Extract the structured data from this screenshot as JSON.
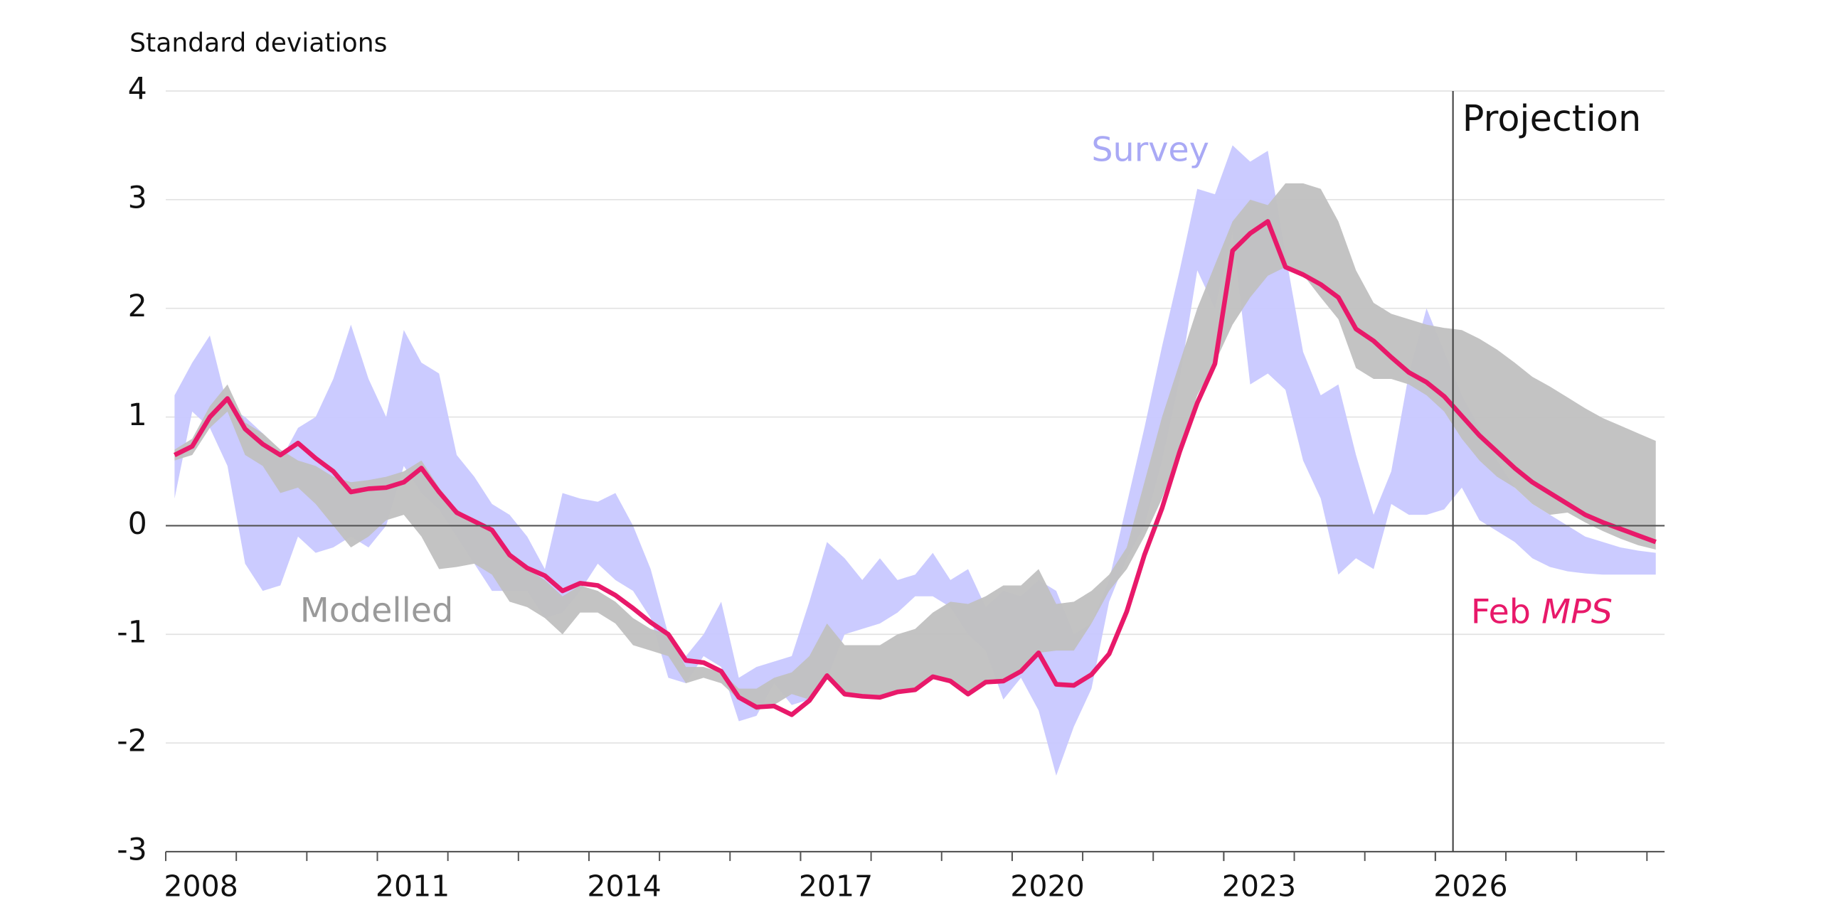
{
  "chart_data": {
    "type": "line",
    "y_label": "Standard deviations",
    "xlim": [
      2008,
      2029.25
    ],
    "xticks": [
      2008,
      2011,
      2014,
      2017,
      2020,
      2023,
      2026
    ],
    "ylim": [
      -3,
      4
    ],
    "yticks": [
      -3,
      -2,
      -1,
      0,
      1,
      2,
      3,
      4
    ],
    "grid": true,
    "projection_start": 2026.25,
    "projection_label": "Projection",
    "x": [
      2008.125,
      2008.375,
      2008.625,
      2008.875,
      2009.125,
      2009.375,
      2009.625,
      2009.875,
      2010.125,
      2010.375,
      2010.625,
      2010.875,
      2011.125,
      2011.375,
      2011.625,
      2011.875,
      2012.125,
      2012.375,
      2012.625,
      2012.875,
      2013.125,
      2013.375,
      2013.625,
      2013.875,
      2014.125,
      2014.375,
      2014.625,
      2014.875,
      2015.125,
      2015.375,
      2015.625,
      2015.875,
      2016.125,
      2016.375,
      2016.625,
      2016.875,
      2017.125,
      2017.375,
      2017.625,
      2017.875,
      2018.125,
      2018.375,
      2018.625,
      2018.875,
      2019.125,
      2019.375,
      2019.625,
      2019.875,
      2020.125,
      2020.375,
      2020.625,
      2020.875,
      2021.125,
      2021.375,
      2021.625,
      2021.875,
      2022.125,
      2022.375,
      2022.625,
      2022.875,
      2023.125,
      2023.375,
      2023.625,
      2023.875,
      2024.125,
      2024.375,
      2024.625,
      2024.875,
      2025.125,
      2025.375,
      2025.625,
      2025.875,
      2026.125,
      2026.375,
      2026.625,
      2026.875,
      2027.125,
      2027.375,
      2027.625,
      2027.875,
      2028.125,
      2028.375,
      2028.625,
      2028.875,
      2029.125
    ],
    "series": [
      {
        "name": "Survey",
        "color": "#c8c8ff",
        "kind": "band",
        "high": [
          1.2,
          1.5,
          1.75,
          1.1,
          1.0,
          0.85,
          0.6,
          0.9,
          1.0,
          1.35,
          1.85,
          1.35,
          1.0,
          1.8,
          1.5,
          1.4,
          0.65,
          0.45,
          0.2,
          0.1,
          -0.1,
          -0.4,
          0.3,
          0.25,
          0.22,
          0.3,
          0.0,
          -0.4,
          -1.0,
          -1.2,
          -1.0,
          -0.7,
          -1.4,
          -1.3,
          -1.25,
          -1.2,
          -0.7,
          -0.15,
          -0.3,
          -0.5,
          -0.3,
          -0.5,
          -0.45,
          -0.25,
          -0.5,
          -0.4,
          -0.75,
          -0.6,
          -0.65,
          -0.5,
          -0.6,
          -1.0,
          -0.9,
          -0.5,
          0.2,
          0.9,
          1.65,
          2.35,
          3.1,
          3.05,
          3.5,
          3.35,
          3.45,
          2.5,
          1.6,
          1.2,
          1.3,
          0.65,
          0.1,
          0.5,
          1.4,
          2.0,
          1.6,
          1.2,
          0.9,
          0.6,
          0.35,
          0.2,
          0.1,
          0.0,
          -0.1,
          -0.15,
          -0.2,
          -0.23,
          -0.25
        ],
        "low": [
          0.25,
          1.05,
          0.9,
          0.55,
          -0.35,
          -0.6,
          -0.55,
          -0.1,
          -0.25,
          -0.2,
          -0.1,
          -0.2,
          0.0,
          0.55,
          0.3,
          0.15,
          -0.1,
          -0.35,
          -0.6,
          -0.6,
          -0.6,
          -0.85,
          -0.8,
          -0.6,
          -0.35,
          -0.5,
          -0.6,
          -0.85,
          -1.4,
          -1.45,
          -1.2,
          -1.3,
          -1.8,
          -1.75,
          -1.45,
          -1.65,
          -1.6,
          -1.4,
          -1.0,
          -0.95,
          -0.9,
          -0.8,
          -0.65,
          -0.65,
          -0.75,
          -1.0,
          -1.15,
          -1.6,
          -1.4,
          -1.7,
          -2.3,
          -1.85,
          -1.5,
          -0.7,
          -0.3,
          0.0,
          0.6,
          1.35,
          2.35,
          2.0,
          2.7,
          1.3,
          1.4,
          1.25,
          0.6,
          0.25,
          -0.45,
          -0.3,
          -0.4,
          0.2,
          0.1,
          0.1,
          0.15,
          0.35,
          0.05,
          -0.05,
          -0.15,
          -0.3,
          -0.38,
          -0.42,
          -0.44,
          -0.45,
          -0.45,
          -0.45,
          -0.45
        ]
      },
      {
        "name": "Modelled",
        "color": "#c0c0c0",
        "kind": "band",
        "high": [
          0.7,
          0.8,
          1.1,
          1.3,
          0.95,
          0.85,
          0.7,
          0.6,
          0.55,
          0.45,
          0.4,
          0.42,
          0.45,
          0.5,
          0.6,
          0.35,
          0.15,
          0.05,
          -0.05,
          -0.25,
          -0.4,
          -0.5,
          -0.65,
          -0.55,
          -0.6,
          -0.7,
          -0.85,
          -0.95,
          -1.0,
          -1.3,
          -1.3,
          -1.35,
          -1.5,
          -1.5,
          -1.4,
          -1.35,
          -1.2,
          -0.9,
          -1.1,
          -1.1,
          -1.1,
          -1.0,
          -0.95,
          -0.8,
          -0.7,
          -0.72,
          -0.65,
          -0.55,
          -0.55,
          -0.4,
          -0.72,
          -0.7,
          -0.6,
          -0.45,
          -0.2,
          0.4,
          1.0,
          1.5,
          2.0,
          2.4,
          2.8,
          3.0,
          2.95,
          3.15,
          3.15,
          3.1,
          2.8,
          2.35,
          2.05,
          1.95,
          1.9,
          1.85,
          1.82,
          1.8,
          1.72,
          1.62,
          1.5,
          1.37,
          1.28,
          1.18,
          1.08,
          0.99,
          0.92,
          0.85,
          0.78
        ],
        "low": [
          0.6,
          0.65,
          0.9,
          1.05,
          0.65,
          0.55,
          0.3,
          0.35,
          0.2,
          0.0,
          -0.2,
          -0.1,
          0.05,
          0.1,
          -0.1,
          -0.4,
          -0.38,
          -0.35,
          -0.45,
          -0.7,
          -0.75,
          -0.85,
          -1.0,
          -0.8,
          -0.8,
          -0.9,
          -1.1,
          -1.15,
          -1.2,
          -1.45,
          -1.4,
          -1.45,
          -1.6,
          -1.7,
          -1.65,
          -1.55,
          -1.6,
          -1.38,
          -1.55,
          -1.57,
          -1.58,
          -1.53,
          -1.51,
          -1.39,
          -1.43,
          -1.55,
          -1.44,
          -1.43,
          -1.34,
          -1.17,
          -1.15,
          -1.15,
          -0.9,
          -0.6,
          -0.4,
          -0.1,
          0.25,
          0.7,
          1.2,
          1.5,
          1.85,
          2.1,
          2.3,
          2.38,
          2.31,
          2.1,
          1.9,
          1.45,
          1.35,
          1.35,
          1.3,
          1.2,
          1.05,
          0.8,
          0.6,
          0.45,
          0.35,
          0.2,
          0.1,
          0.12,
          0.03,
          -0.05,
          -0.12,
          -0.18,
          -0.22
        ]
      },
      {
        "name": "Feb MPS",
        "color": "#e8196a",
        "kind": "line",
        "values": [
          0.65,
          0.73,
          1.0,
          1.17,
          0.89,
          0.75,
          0.65,
          0.76,
          0.62,
          0.5,
          0.31,
          0.34,
          0.35,
          0.4,
          0.53,
          0.31,
          0.12,
          0.04,
          -0.04,
          -0.27,
          -0.39,
          -0.46,
          -0.6,
          -0.53,
          -0.55,
          -0.64,
          -0.76,
          -0.89,
          -1.0,
          -1.24,
          -1.26,
          -1.34,
          -1.58,
          -1.67,
          -1.66,
          -1.74,
          -1.61,
          -1.38,
          -1.55,
          -1.57,
          -1.58,
          -1.53,
          -1.51,
          -1.39,
          -1.43,
          -1.55,
          -1.44,
          -1.43,
          -1.34,
          -1.17,
          -1.46,
          -1.47,
          -1.37,
          -1.18,
          -0.79,
          -0.27,
          0.16,
          0.68,
          1.13,
          1.49,
          2.53,
          2.69,
          2.8,
          2.38,
          2.31,
          2.22,
          2.1,
          1.81,
          1.7,
          1.55,
          1.41,
          1.32,
          1.19,
          1.01,
          0.83,
          0.68,
          0.53,
          0.4,
          0.3,
          0.2,
          0.1,
          0.03,
          -0.03,
          -0.09,
          -0.15
        ]
      }
    ]
  }
}
